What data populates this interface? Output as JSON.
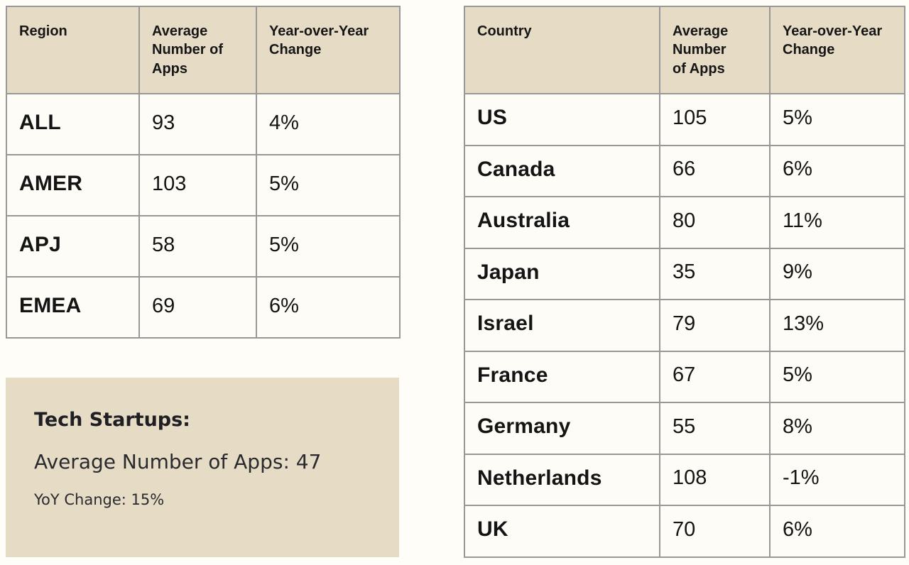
{
  "chart_data": [
    {
      "type": "table",
      "columns": [
        "Region",
        "Average Number of Apps",
        "Year-over-Year Change"
      ],
      "rows": [
        [
          "ALL",
          "93",
          "4%"
        ],
        [
          "AMER",
          "103",
          "5%"
        ],
        [
          "APJ",
          "58",
          "5%"
        ],
        [
          "EMEA",
          "69",
          "6%"
        ]
      ]
    },
    {
      "type": "table",
      "columns": [
        "Country",
        "Average Number of Apps",
        "Year-over-Year Change"
      ],
      "rows": [
        [
          "US",
          "105",
          "5%"
        ],
        [
          "Canada",
          "66",
          "6%"
        ],
        [
          "Australia",
          "80",
          "11%"
        ],
        [
          "Japan",
          "35",
          "9%"
        ],
        [
          "Israel",
          "79",
          "13%"
        ],
        [
          "France",
          "67",
          "5%"
        ],
        [
          "Germany",
          "55",
          "8%"
        ],
        [
          "Netherlands",
          "108",
          "-1%"
        ],
        [
          "UK",
          "70",
          "6%"
        ]
      ]
    }
  ],
  "display": {
    "region_headers": [
      "Region",
      "Average\nNumber of\nApps",
      "Year-over-Year\nChange"
    ],
    "country_headers": [
      "Country",
      "Average\nNumber\nof Apps",
      "Year-over-Year\nChange"
    ]
  },
  "callout": {
    "title": "Tech Startups:",
    "avg_apps_line": "Average Number of Apps: 47",
    "yoy_line": "YoY Change: 15%"
  },
  "colors": {
    "header_bg": "#e6dcc6",
    "callout_bg": "#e6dcc6",
    "cell_bg": "#fdfcf6",
    "page_bg": "#fffdf8",
    "border": "#989898",
    "text": "#1b1b1b"
  }
}
